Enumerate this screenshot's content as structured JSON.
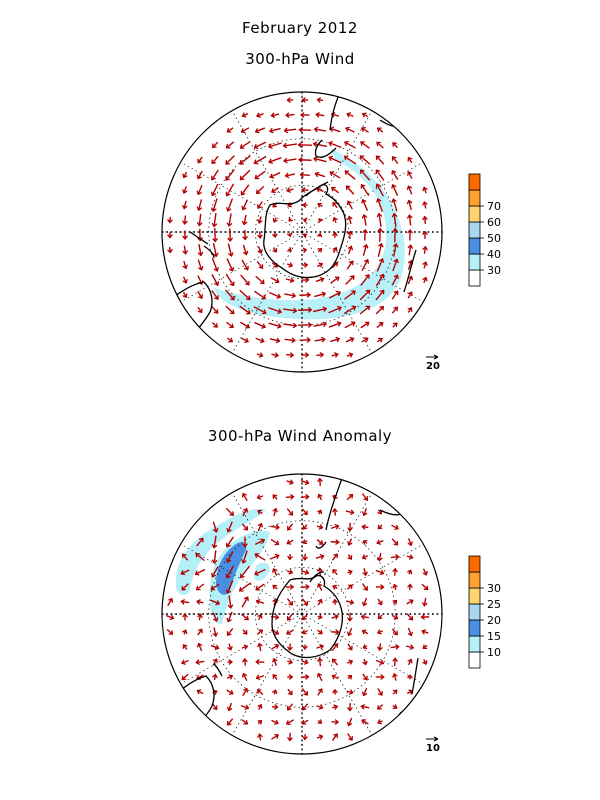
{
  "titles": {
    "month": "February 2012",
    "wind": "300-hPa Wind",
    "anomaly": "300-hPa Wind Anomaly"
  },
  "colors": {
    "vector": "#b30000",
    "coast": "#000000",
    "grid": "#000000"
  },
  "chart_data": [
    {
      "type": "heatmap",
      "subtype": "polar-stereographic vector wind map (Southern Hemisphere)",
      "title": "300-hPa Wind",
      "colorbar": {
        "ticks": [
          "30",
          "40",
          "50",
          "60",
          "70"
        ],
        "colors": [
          "#ffffff",
          "#b4f0f8",
          "#4a90e2",
          "#a8d8f0",
          "#ffd470",
          "#ffa030",
          "#ff6a00"
        ]
      },
      "reference_vector": {
        "label": "20",
        "value": 20
      },
      "feature": "circumpolar jet with speeds 30-40 in a band across the Pacific/Indian sector"
    },
    {
      "type": "heatmap",
      "subtype": "polar-stereographic vector wind anomaly map (Southern Hemisphere)",
      "title": "300-hPa Wind Anomaly",
      "colorbar": {
        "ticks": [
          "10",
          "15",
          "20",
          "25",
          "30"
        ],
        "colors": [
          "#ffffff",
          "#b4f0f8",
          "#4a90e2",
          "#a8d8f0",
          "#ffd470",
          "#ffa030",
          "#ff6a00"
        ]
      },
      "reference_vector": {
        "label": "10",
        "value": 10
      },
      "feature": "anomaly maximum of 15-20 over the Atlantic sector near South America"
    }
  ]
}
